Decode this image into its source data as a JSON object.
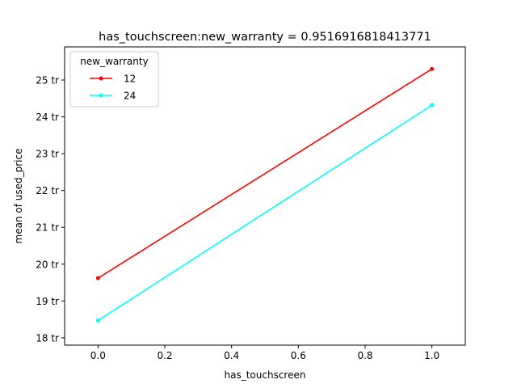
{
  "chart_data": {
    "type": "line",
    "title": "has_touchscreen:new_warranty = 0.9516916818413771",
    "xlabel": "has_touchscreen",
    "ylabel": "mean of used_price",
    "xlim": [
      -0.1,
      1.1
    ],
    "ylim": [
      17.8,
      25.9
    ],
    "x_ticks": [
      0.0,
      0.2,
      0.4,
      0.6,
      0.8,
      1.0
    ],
    "x_tick_labels": [
      "0.0",
      "0.2",
      "0.4",
      "0.6",
      "0.8",
      "1.0"
    ],
    "y_ticks": [
      18,
      19,
      20,
      21,
      22,
      23,
      24,
      25
    ],
    "y_tick_labels": [
      "18 tr",
      "19 tr",
      "20 tr",
      "21 tr",
      "22 tr",
      "23 tr",
      "24 tr",
      "25 tr"
    ],
    "grid": false,
    "legend": {
      "title": "new_warranty",
      "placement": "top-left"
    },
    "series": [
      {
        "name": "12",
        "color": "#ff0000",
        "x": [
          0,
          1
        ],
        "y": [
          19.62,
          25.3
        ]
      },
      {
        "name": "24",
        "color": "#00ffff",
        "x": [
          0,
          1
        ],
        "y": [
          18.47,
          24.32
        ]
      }
    ]
  }
}
